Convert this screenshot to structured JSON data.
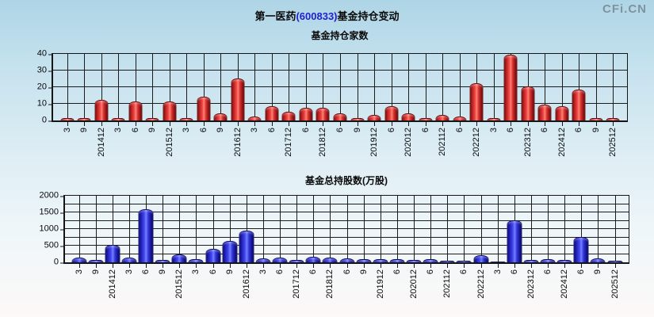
{
  "brand": "CFi.CN",
  "title": {
    "part1": "第一医药",
    "code": "(600833)",
    "part2": "基金持仓变动"
  },
  "colors": {
    "title_code": "#2222cc",
    "brand": "#7f939f",
    "grid": "#1c1c1c",
    "red_bar": "#d92b2b",
    "blue_bar": "#3a3ad9",
    "background_top": "#aed5e6",
    "background_bottom": "#fcf9f8"
  },
  "chart_data": [
    {
      "type": "bar",
      "title": "基金持仓家数",
      "categories": [
        "3",
        "9",
        "201412",
        "3",
        "6",
        "9",
        "201512",
        "3",
        "6",
        "9",
        "201612",
        "3",
        "6",
        "201712",
        "6",
        "201812",
        "6",
        "9",
        "201912",
        "6",
        "202012",
        "6",
        "202112",
        "6",
        "202212",
        "3",
        "6",
        "202312",
        "6",
        "202412",
        "6",
        "9",
        "202512"
      ],
      "values": [
        1,
        1,
        12,
        1,
        11,
        1,
        11,
        1,
        14,
        4,
        25,
        2,
        8,
        5,
        7,
        7,
        4,
        1,
        3,
        8,
        4,
        1,
        3,
        2,
        22,
        1,
        39,
        20,
        9,
        8,
        18,
        1,
        1
      ],
      "xlabel": "",
      "ylabel": "",
      "ylim": [
        0,
        40
      ],
      "yticks": [
        0,
        10,
        20,
        30,
        40
      ],
      "grid_rows": 4,
      "grid": "on",
      "legend": "none",
      "series_color": "#d92b2b"
    },
    {
      "type": "bar",
      "title": "基金总持股数(万股)",
      "categories": [
        "3",
        "9",
        "201412",
        "3",
        "6",
        "9",
        "201512",
        "3",
        "6",
        "9",
        "201612",
        "3",
        "6",
        "201712",
        "6",
        "201812",
        "6",
        "9",
        "201912",
        "6",
        "202012",
        "6",
        "202112",
        "6",
        "202212",
        "3",
        "6",
        "202312",
        "6",
        "202412",
        "6",
        "9",
        "202512"
      ],
      "values": [
        110,
        50,
        500,
        110,
        1560,
        40,
        210,
        80,
        370,
        630,
        930,
        100,
        130,
        40,
        140,
        120,
        100,
        60,
        60,
        70,
        50,
        60,
        20,
        20,
        200,
        10,
        1250,
        50,
        60,
        40,
        740,
        100,
        20
      ],
      "xlabel": "",
      "ylabel": "",
      "ylim": [
        0,
        2000
      ],
      "yticks": [
        0,
        500,
        1000,
        1500,
        2000
      ],
      "grid_rows": 8,
      "grid": "on",
      "legend": "none",
      "series_color": "#3a3ad9"
    }
  ]
}
